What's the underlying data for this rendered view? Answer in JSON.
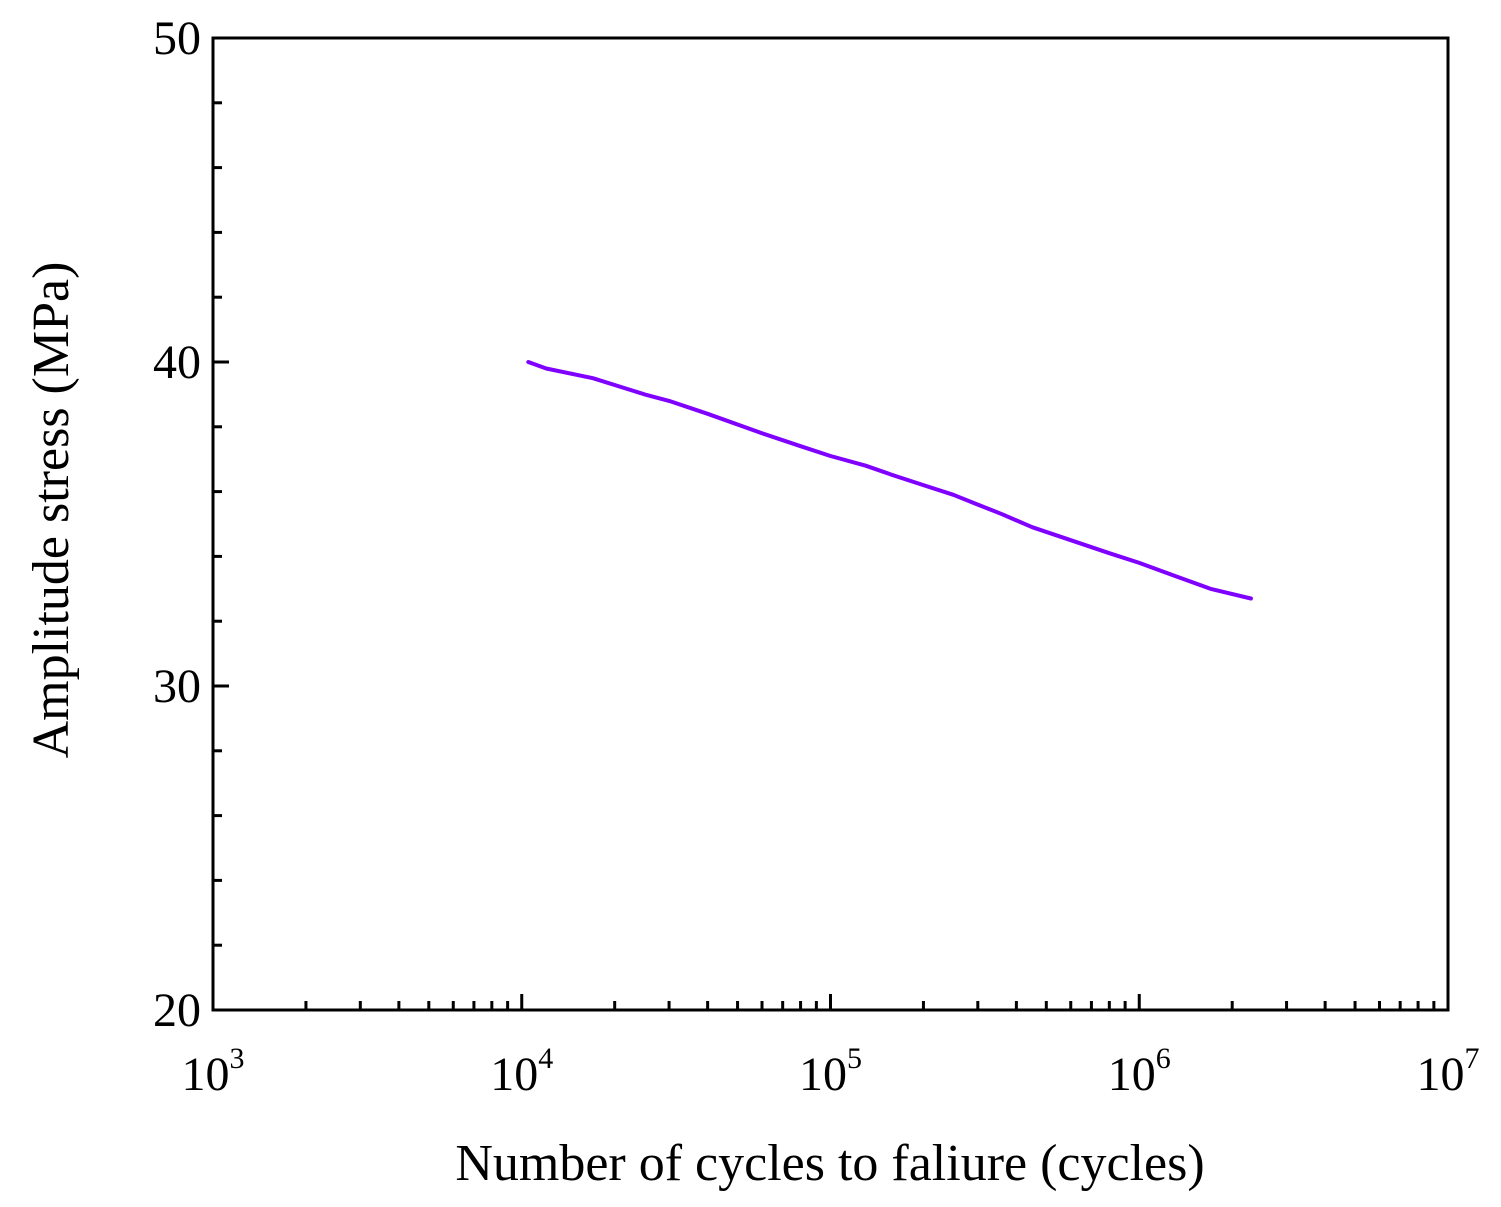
{
  "chart_data": {
    "type": "line",
    "xlabel": "Number of cycles to faliure (cycles)",
    "ylabel": "Amplitude stress (MPa)",
    "x_scale": "log",
    "xlim": [
      1000,
      10000000
    ],
    "ylim": [
      20,
      50
    ],
    "x_ticks": [
      {
        "value": 1000,
        "base": "10",
        "exp": "3"
      },
      {
        "value": 10000,
        "base": "10",
        "exp": "4"
      },
      {
        "value": 100000,
        "base": "10",
        "exp": "5"
      },
      {
        "value": 1000000,
        "base": "10",
        "exp": "6"
      },
      {
        "value": 10000000,
        "base": "10",
        "exp": "7"
      }
    ],
    "y_ticks": [
      {
        "value": 20,
        "label": "20"
      },
      {
        "value": 30,
        "label": "30"
      },
      {
        "value": 40,
        "label": "40"
      },
      {
        "value": 50,
        "label": "50"
      }
    ],
    "grid": false,
    "series": [
      {
        "color": "#8000ff",
        "points": [
          [
            10500,
            40.0
          ],
          [
            12000,
            39.8
          ],
          [
            17000,
            39.5
          ],
          [
            25000,
            39.0
          ],
          [
            30000,
            38.8
          ],
          [
            40000,
            38.4
          ],
          [
            60000,
            37.8
          ],
          [
            80000,
            37.4
          ],
          [
            100000,
            37.1
          ],
          [
            130000,
            36.8
          ],
          [
            160000,
            36.5
          ],
          [
            200000,
            36.2
          ],
          [
            250000,
            35.9
          ],
          [
            300000,
            35.6
          ],
          [
            360000,
            35.3
          ],
          [
            450000,
            34.9
          ],
          [
            600000,
            34.5
          ],
          [
            800000,
            34.1
          ],
          [
            1000000,
            33.8
          ],
          [
            1300000,
            33.4
          ],
          [
            1700000,
            33.0
          ],
          [
            2300000,
            32.7
          ]
        ]
      }
    ]
  }
}
